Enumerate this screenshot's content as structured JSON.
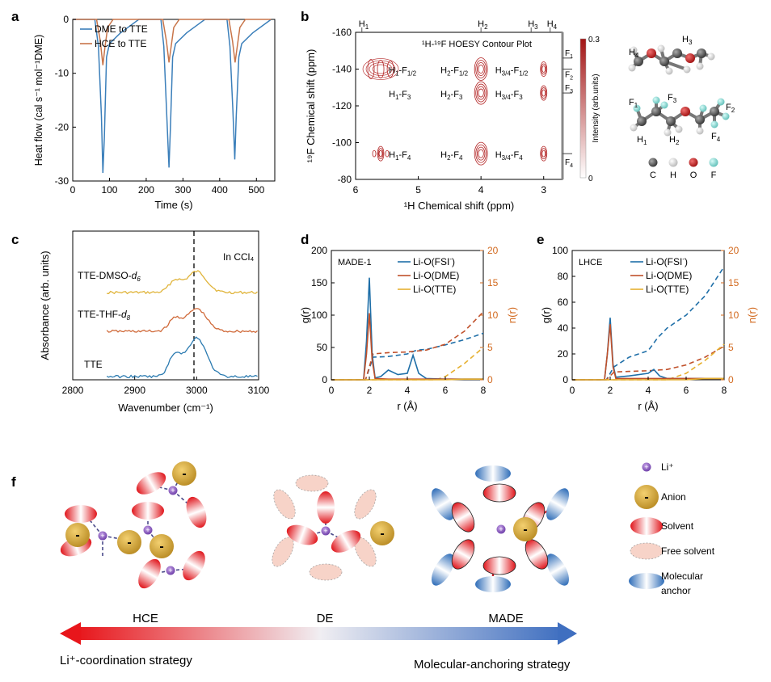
{
  "panels": {
    "a": "a",
    "b": "b",
    "c": "c",
    "d": "d",
    "e": "e",
    "f": "f"
  },
  "chart_data": [
    {
      "id": "a",
      "type": "line",
      "title": "",
      "xlabel": "Time (s)",
      "ylabel": "Heat flow (cal s⁻¹ mol⁻¹DME)",
      "xlim": [
        0,
        550
      ],
      "ylim": [
        -30,
        0
      ],
      "xticks": [
        "0",
        "100",
        "200",
        "300",
        "400",
        "500"
      ],
      "yticks": [
        "0",
        "-10",
        "-20",
        "-30"
      ],
      "legend": "top-left",
      "series": [
        {
          "name": "DME to TTE",
          "color": "#3b7fba",
          "x": [
            0,
            60,
            70,
            78,
            82,
            86,
            92,
            100,
            130,
            160,
            180,
            240,
            248,
            256,
            262,
            266,
            272,
            280,
            310,
            340,
            360,
            420,
            428,
            436,
            441,
            445,
            452,
            460,
            490,
            540
          ],
          "y": [
            0,
            0,
            -5,
            -18,
            -28.5,
            -22,
            -7,
            -4.5,
            -2.5,
            -1,
            0,
            0,
            -5,
            -18,
            -27.5,
            -20,
            -7,
            -4.5,
            -2.5,
            -1,
            0,
            0,
            -5,
            -17,
            -26,
            -18,
            -7,
            -4.5,
            -2.5,
            0
          ]
        },
        {
          "name": "HCE to TTE",
          "color": "#c8754a",
          "x": [
            0,
            65,
            75,
            82,
            88,
            95,
            110,
            245,
            255,
            262,
            268,
            275,
            290,
            425,
            435,
            442,
            448,
            455,
            470,
            540
          ],
          "y": [
            0,
            0,
            -4,
            -8.5,
            -5,
            -1.5,
            0,
            0,
            -4,
            -8,
            -5,
            -1.5,
            0,
            0,
            -4,
            -8,
            -5,
            -1.5,
            0,
            0
          ]
        }
      ]
    },
    {
      "id": "b",
      "type": "contour",
      "title": "¹H-¹⁹F HOESY Contour Plot",
      "xlabel": "¹H Chemical shift (ppm)",
      "ylabel": "¹⁹F Chemical shift (ppm)",
      "xlim": [
        6,
        2.7
      ],
      "ylim": [
        -80,
        -160
      ],
      "xticks": [
        "6",
        "5",
        "4",
        "3"
      ],
      "yticks": [
        "-160",
        "-140",
        "-120",
        "-100",
        "-80"
      ],
      "top_labels": [
        "H1",
        "H2",
        "H3",
        "H4"
      ],
      "right_labels": [
        "F1",
        "F2",
        "F3",
        "F4"
      ],
      "colorbar": {
        "label": "Intensity (arb.units)",
        "max": "0.3",
        "min": "0",
        "color": "#b22222"
      },
      "peaks": [
        {
          "h": 5.6,
          "f": -140,
          "label": "H1-F1/2",
          "size": "large"
        },
        {
          "h": 4.0,
          "f": -140,
          "label": "H2-F1/2",
          "size": "medium"
        },
        {
          "h": 3.0,
          "f": -140,
          "label": "H3/4-F1/2",
          "size": "small"
        },
        {
          "h": 4.0,
          "f": -127,
          "label": "H2-F3",
          "size": "medium"
        },
        {
          "h": 3.0,
          "f": -127,
          "label": "H3/4-F3",
          "size": "small"
        },
        {
          "h": 5.5,
          "f": -127,
          "label": "H1-F3",
          "size": "none"
        },
        {
          "h": 5.6,
          "f": -94,
          "label": "H1-F4",
          "size": "small"
        },
        {
          "h": 4.0,
          "f": -94,
          "label": "H2-F4",
          "size": "medium"
        },
        {
          "h": 3.0,
          "f": -94,
          "label": "H3/4-F4",
          "size": "small"
        }
      ]
    },
    {
      "id": "c",
      "type": "line",
      "xlabel": "Wavenumber (cm⁻¹)",
      "ylabel": "Absorbance (arb. units)",
      "xlim": [
        2800,
        3100
      ],
      "xticks": [
        "2800",
        "2900",
        "3000",
        "3100"
      ],
      "annotation": "In CCl₄",
      "dashed_line_x": 3000,
      "series": [
        {
          "name": "TTE-DMSO-d6",
          "color": "#e0b43a"
        },
        {
          "name": "TTE-THF-d8",
          "color": "#d06a3a"
        },
        {
          "name": "TTE",
          "color": "#2a7ab0"
        }
      ]
    },
    {
      "id": "d",
      "type": "line",
      "title": "MADE-1",
      "xlabel": "r (Å)",
      "ylabel": "g(r)",
      "ylabel_right": "n(r)",
      "xlim": [
        0,
        8
      ],
      "ylim": [
        0,
        200
      ],
      "ylim_right": [
        0,
        20
      ],
      "xticks": [
        "0",
        "2",
        "4",
        "6",
        "8"
      ],
      "yticks": [
        "0",
        "50",
        "100",
        "150",
        "200"
      ],
      "yticks_right": [
        "0",
        "5",
        "10",
        "15",
        "20"
      ],
      "legend": "top-right",
      "series": [
        {
          "name": "Li-O(FSI⁻)",
          "color": "#1f6fa8",
          "x": [
            0,
            1.7,
            1.85,
            2.0,
            2.15,
            2.3,
            2.6,
            3,
            3.5,
            4,
            4.3,
            4.6,
            5,
            6,
            7,
            8
          ],
          "y": [
            0,
            0,
            60,
            158,
            40,
            3,
            5,
            15,
            8,
            10,
            38,
            10,
            2,
            1,
            1,
            1
          ]
        },
        {
          "name": "Li-O(DME)",
          "color": "#c0502a",
          "x": [
            0,
            1.7,
            1.85,
            2.0,
            2.15,
            2.3,
            3,
            4,
            5,
            6,
            7,
            8
          ],
          "y": [
            0,
            0,
            40,
            103,
            30,
            2,
            1,
            1,
            1,
            1,
            1,
            1
          ]
        },
        {
          "name": "Li-O(TTE)",
          "color": "#e6b030",
          "x": [
            0,
            6,
            7,
            8
          ],
          "y": [
            0,
            0,
            1,
            1
          ]
        }
      ],
      "coordination_series": [
        {
          "name": "n Li-O(FSI⁻)",
          "color": "#1f6fa8",
          "x": [
            0,
            1.8,
            2.2,
            3,
            4,
            4.5,
            5,
            6,
            7,
            8
          ],
          "y": [
            0,
            0,
            3.5,
            3.6,
            4,
            4.6,
            4.7,
            5.4,
            6.2,
            7.2
          ]
        },
        {
          "name": "n Li-O(DME)",
          "color": "#c0502a",
          "x": [
            0,
            1.8,
            2.2,
            3,
            4,
            5,
            6,
            7,
            8
          ],
          "y": [
            0,
            0,
            4,
            4.2,
            4.3,
            4.6,
            5.5,
            7.5,
            10.5
          ]
        },
        {
          "name": "n Li-O(TTE)",
          "color": "#e6b030",
          "x": [
            0,
            5.5,
            6,
            7,
            8
          ],
          "y": [
            0,
            0,
            0.5,
            2.5,
            5
          ]
        }
      ]
    },
    {
      "id": "e",
      "type": "line",
      "title": "LHCE",
      "xlabel": "r (Å)",
      "ylabel": "g(r)",
      "ylabel_right": "n(r)",
      "xlim": [
        0,
        8
      ],
      "ylim": [
        0,
        100
      ],
      "ylim_right": [
        0,
        20
      ],
      "xticks": [
        "0",
        "2",
        "4",
        "6",
        "8"
      ],
      "yticks": [
        "0",
        "20",
        "40",
        "60",
        "80",
        "100"
      ],
      "yticks_right": [
        "0",
        "5",
        "10",
        "15",
        "20"
      ],
      "legend": "top-right",
      "series": [
        {
          "name": "Li-O(FSI⁻)",
          "color": "#1f6fa8",
          "x": [
            0,
            1.7,
            1.85,
            2.0,
            2.15,
            2.3,
            3,
            4,
            4.3,
            4.6,
            5,
            6,
            7,
            8
          ],
          "y": [
            0,
            0,
            20,
            48,
            12,
            2,
            3,
            5,
            8,
            3,
            1,
            1,
            1,
            1
          ]
        },
        {
          "name": "Li-O(DME)",
          "color": "#c0502a",
          "x": [
            0,
            1.7,
            1.85,
            2.0,
            2.15,
            2.3,
            3,
            4,
            5,
            6,
            7,
            8
          ],
          "y": [
            0,
            0,
            20,
            43,
            10,
            1,
            1,
            1,
            1,
            1,
            1,
            1
          ]
        },
        {
          "name": "Li-O(TTE)",
          "color": "#e6b030",
          "x": [
            0,
            6,
            7,
            8
          ],
          "y": [
            0,
            0,
            1,
            1
          ]
        }
      ],
      "coordination_series": [
        {
          "name": "n Li-O(FSI⁻)",
          "color": "#1f6fa8",
          "x": [
            0,
            1.8,
            2.2,
            3,
            4,
            4.5,
            5,
            6,
            7,
            8
          ],
          "y": [
            0,
            0,
            2,
            3.5,
            4.5,
            6.5,
            8,
            10,
            13,
            17.5
          ]
        },
        {
          "name": "n Li-O(DME)",
          "color": "#c0502a",
          "x": [
            0,
            1.8,
            2.2,
            3,
            4,
            5,
            6,
            7,
            8
          ],
          "y": [
            0,
            0,
            1.2,
            1.3,
            1.4,
            1.6,
            2.3,
            3.5,
            5.2
          ]
        },
        {
          "name": "n Li-O(TTE)",
          "color": "#e6b030",
          "x": [
            0,
            5,
            6,
            7,
            8
          ],
          "y": [
            0,
            0,
            1,
            3,
            5.5
          ]
        }
      ]
    }
  ],
  "molecules": {
    "top": {
      "labels": [
        "H4",
        "H3"
      ]
    },
    "bottom": {
      "labels": [
        "F1",
        "F3",
        "F2",
        "F4",
        "H1",
        "H2"
      ]
    },
    "atom_legend": [
      "C",
      "H",
      "O",
      "F"
    ],
    "atom_colors": [
      "#555555",
      "#dddddd",
      "#b81c1c",
      "#7fd0cc"
    ]
  },
  "schematic": {
    "groups": [
      "HCE",
      "DE",
      "MADE"
    ],
    "legend": [
      "Li⁺",
      "Anion",
      "Solvent",
      "Free solvent",
      "Molecular\nanchor"
    ],
    "strategy_left": "Li⁺-coordination strategy",
    "strategy_right": "Molecular-anchoring strategy",
    "anion_sign": "-",
    "li_sign": "+"
  }
}
